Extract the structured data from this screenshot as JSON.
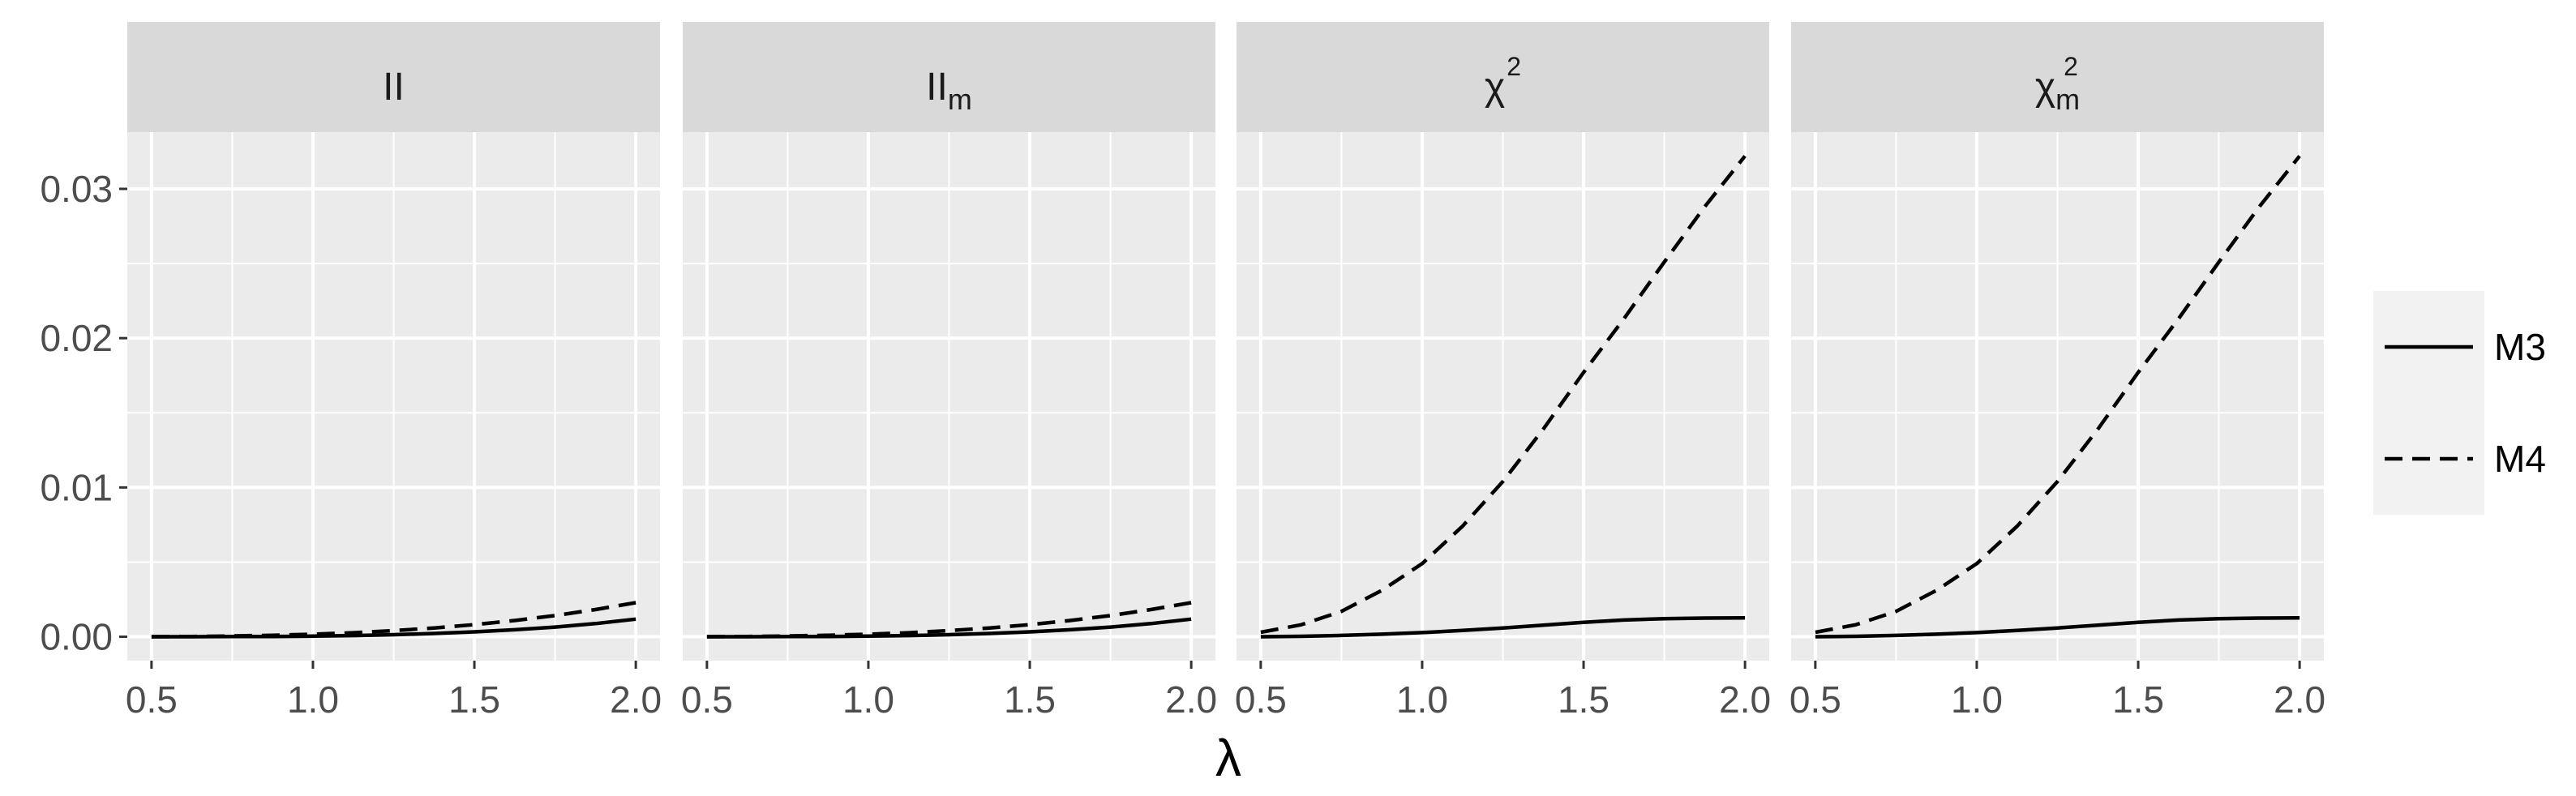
{
  "chart_data": {
    "type": "line",
    "xlabel": "λ",
    "ylabel": "",
    "x_ticks": [
      "0.5",
      "1.0",
      "1.5",
      "2.0"
    ],
    "y_ticks": [
      "0.00",
      "0.01",
      "0.02",
      "0.03"
    ],
    "xlim": [
      0.425,
      2.075
    ],
    "ylim": [
      -0.0016,
      0.0338
    ],
    "grid": true,
    "legend_position": "right",
    "x": [
      0.5,
      0.625,
      0.75,
      0.875,
      1.0,
      1.125,
      1.25,
      1.375,
      1.5,
      1.625,
      1.75,
      1.875,
      2.0
    ],
    "panels": [
      {
        "strip": {
          "base": "II",
          "sub": "m",
          "sup": "",
          "show_sub": false,
          "show_sup": false
        },
        "series": [
          {
            "name": "M3",
            "dash": "solid",
            "values": [
              0.0,
              0.0,
              1e-05,
              2e-05,
              4e-05,
              8e-05,
              0.00014,
              0.00022,
              0.00033,
              0.00047,
              0.00065,
              0.00088,
              0.00118
            ]
          },
          {
            "name": "M4",
            "dash": "dashed",
            "values": [
              0.0,
              2e-05,
              5e-05,
              0.0001,
              0.00017,
              0.00027,
              0.00041,
              0.00059,
              0.00081,
              0.00109,
              0.00142,
              0.00182,
              0.00228
            ]
          }
        ]
      },
      {
        "strip": {
          "base": "II",
          "sub": "m",
          "sup": "",
          "show_sub": true,
          "show_sup": false
        },
        "series": [
          {
            "name": "M3",
            "dash": "solid",
            "values": [
              0.0,
              0.0,
              1e-05,
              2e-05,
              4e-05,
              8e-05,
              0.00014,
              0.00022,
              0.00033,
              0.00047,
              0.00065,
              0.00088,
              0.00118
            ]
          },
          {
            "name": "M4",
            "dash": "dashed",
            "values": [
              0.0,
              2e-05,
              5e-05,
              0.0001,
              0.00017,
              0.00027,
              0.00041,
              0.00059,
              0.00081,
              0.00109,
              0.00142,
              0.00182,
              0.00228
            ]
          }
        ]
      },
      {
        "strip": {
          "base": "χ",
          "sub": "m",
          "sup": "2",
          "show_sub": false,
          "show_sup": true
        },
        "series": [
          {
            "name": "M3",
            "dash": "solid",
            "values": [
              0.0,
              3e-05,
              9e-05,
              0.00017,
              0.00028,
              0.00042,
              0.00059,
              0.00078,
              0.00097,
              0.00112,
              0.00121,
              0.00125,
              0.00126
            ]
          },
          {
            "name": "M4",
            "dash": "dashed",
            "values": [
              0.0003,
              0.0008,
              0.0017,
              0.0031,
              0.0049,
              0.0074,
              0.0104,
              0.0139,
              0.0177,
              0.0213,
              0.0251,
              0.0288,
              0.0322
            ]
          }
        ]
      },
      {
        "strip": {
          "base": "χ",
          "sub": "m",
          "sup": "2",
          "show_sub": true,
          "show_sup": true
        },
        "series": [
          {
            "name": "M3",
            "dash": "solid",
            "values": [
              0.0,
              3e-05,
              9e-05,
              0.00017,
              0.00028,
              0.00042,
              0.00059,
              0.00078,
              0.00097,
              0.00112,
              0.00121,
              0.00125,
              0.00126
            ]
          },
          {
            "name": "M4",
            "dash": "dashed",
            "values": [
              0.0003,
              0.0008,
              0.0017,
              0.0031,
              0.0049,
              0.0074,
              0.0104,
              0.0139,
              0.0177,
              0.0213,
              0.0251,
              0.0288,
              0.0322
            ]
          }
        ]
      }
    ],
    "legend": [
      {
        "name": "M3",
        "dash": "solid"
      },
      {
        "name": "M4",
        "dash": "dashed"
      }
    ],
    "colors": {
      "panel_bg": "#ebebeb",
      "strip_bg": "#d9d9d9",
      "grid": "#ffffff",
      "line": "#000000",
      "axis_text": "#4d4d4d",
      "legend_bg": "#f2f2f2"
    }
  }
}
